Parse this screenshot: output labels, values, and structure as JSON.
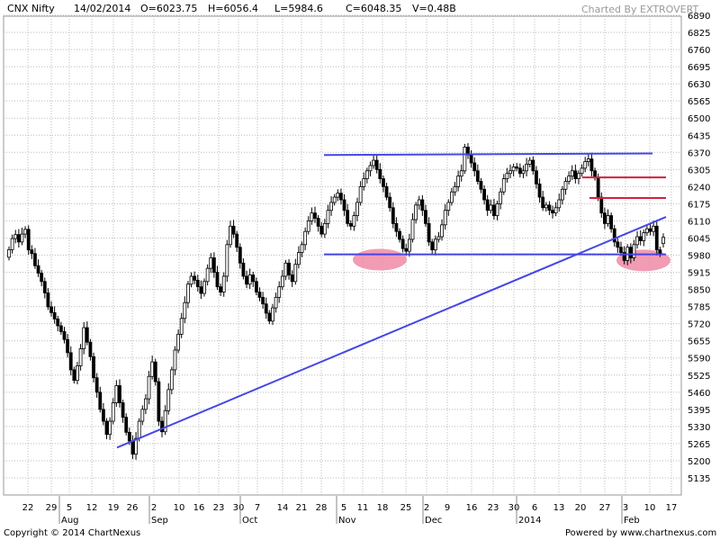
{
  "header": {
    "symbol": "CNX Nifty",
    "date": "14/02/2014",
    "open": "O=6023.75",
    "high": "H=6056.4",
    "low": "L=5984.6",
    "close": "C=6048.35",
    "volume": "V=0.48B",
    "watermark": "Charted By EXTROVERT"
  },
  "footer": {
    "copyright": "Copyright © 2014 ChartNexus",
    "powered": "Powered by www.chartnexus.com"
  },
  "colors": {
    "candle": "#000000",
    "trendline": "#4646e6",
    "resistance": "#d42040",
    "zone": "#f08aa8",
    "grid": "#bbbbbb"
  },
  "chart_data": {
    "type": "candlestick",
    "ylim": [
      5070,
      6890
    ],
    "y_ticks": [
      5135,
      5200,
      5265,
      5330,
      5395,
      5460,
      5525,
      5590,
      5655,
      5720,
      5785,
      5850,
      5915,
      5980,
      6045,
      6110,
      6175,
      6240,
      6305,
      6370,
      6435,
      6500,
      6565,
      6630,
      6695,
      6760,
      6825,
      6890
    ],
    "x_ticks": [
      "22",
      "29",
      "5",
      "12",
      "19",
      "26",
      "2",
      "10",
      "16",
      "23",
      "30",
      "7",
      "14",
      "21",
      "28",
      "5",
      "11",
      "18",
      "25",
      "2",
      "9",
      "16",
      "23",
      "30",
      "6",
      "13",
      "20",
      "27",
      "3",
      "10",
      "17"
    ],
    "month_labels": [
      "Aug",
      "Sep",
      "Oct",
      "Nov",
      "Dec",
      "2014",
      "Feb"
    ],
    "candles": [
      [
        5972,
        6001
      ],
      [
        6001,
        6043
      ],
      [
        6043,
        6058
      ],
      [
        6058,
        6030
      ],
      [
        6030,
        6060
      ],
      [
        6060,
        6078
      ],
      [
        6078,
        6000
      ],
      [
        6000,
        5986
      ],
      [
        5986,
        5940
      ],
      [
        5940,
        5912
      ],
      [
        5912,
        5880
      ],
      [
        5880,
        5837
      ],
      [
        5837,
        5784
      ],
      [
        5784,
        5762
      ],
      [
        5762,
        5738
      ],
      [
        5738,
        5712
      ],
      [
        5712,
        5690
      ],
      [
        5690,
        5660
      ],
      [
        5660,
        5610
      ],
      [
        5610,
        5545
      ],
      [
        5545,
        5505
      ],
      [
        5505,
        5560
      ],
      [
        5560,
        5625
      ],
      [
        5625,
        5705
      ],
      [
        5705,
        5650
      ],
      [
        5650,
        5595
      ],
      [
        5595,
        5515
      ],
      [
        5515,
        5460
      ],
      [
        5460,
        5395
      ],
      [
        5395,
        5350
      ],
      [
        5350,
        5300
      ],
      [
        5300,
        5350
      ],
      [
        5350,
        5420
      ],
      [
        5420,
        5485
      ],
      [
        5485,
        5420
      ],
      [
        5420,
        5365
      ],
      [
        5365,
        5308
      ],
      [
        5308,
        5275
      ],
      [
        5275,
        5225
      ],
      [
        5225,
        5285
      ],
      [
        5285,
        5350
      ],
      [
        5350,
        5395
      ],
      [
        5395,
        5435
      ],
      [
        5435,
        5520
      ],
      [
        5520,
        5575
      ],
      [
        5575,
        5500
      ],
      [
        5500,
        5350
      ],
      [
        5350,
        5310
      ],
      [
        5310,
        5390
      ],
      [
        5390,
        5470
      ],
      [
        5470,
        5545
      ],
      [
        5545,
        5620
      ],
      [
        5620,
        5680
      ],
      [
        5680,
        5740
      ],
      [
        5740,
        5800
      ],
      [
        5800,
        5870
      ],
      [
        5870,
        5900
      ],
      [
        5900,
        5885
      ],
      [
        5885,
        5860
      ],
      [
        5860,
        5835
      ],
      [
        5835,
        5880
      ],
      [
        5880,
        5930
      ],
      [
        5930,
        5970
      ],
      [
        5970,
        5915
      ],
      [
        5915,
        5860
      ],
      [
        5860,
        5840
      ],
      [
        5840,
        5900
      ],
      [
        5900,
        6020
      ],
      [
        6020,
        6090
      ],
      [
        6090,
        6060
      ],
      [
        6060,
        6010
      ],
      [
        6010,
        5950
      ],
      [
        5950,
        5900
      ],
      [
        5900,
        5870
      ],
      [
        5870,
        5905
      ],
      [
        5905,
        5880
      ],
      [
        5880,
        5840
      ],
      [
        5840,
        5820
      ],
      [
        5820,
        5795
      ],
      [
        5795,
        5760
      ],
      [
        5760,
        5730
      ],
      [
        5730,
        5780
      ],
      [
        5780,
        5820
      ],
      [
        5820,
        5860
      ],
      [
        5860,
        5900
      ],
      [
        5900,
        5950
      ],
      [
        5950,
        5905
      ],
      [
        5905,
        5880
      ],
      [
        5880,
        5945
      ],
      [
        5945,
        5990
      ],
      [
        5990,
        6020
      ],
      [
        6020,
        6070
      ],
      [
        6070,
        6110
      ],
      [
        6110,
        6140
      ],
      [
        6140,
        6120
      ],
      [
        6120,
        6090
      ],
      [
        6090,
        6060
      ],
      [
        6060,
        6100
      ],
      [
        6100,
        6150
      ],
      [
        6150,
        6180
      ],
      [
        6180,
        6200
      ],
      [
        6200,
        6215
      ],
      [
        6215,
        6190
      ],
      [
        6190,
        6150
      ],
      [
        6150,
        6100
      ],
      [
        6100,
        6090
      ],
      [
        6090,
        6130
      ],
      [
        6130,
        6180
      ],
      [
        6180,
        6240
      ],
      [
        6240,
        6270
      ],
      [
        6270,
        6300
      ],
      [
        6300,
        6320
      ],
      [
        6320,
        6340
      ],
      [
        6340,
        6305
      ],
      [
        6305,
        6270
      ],
      [
        6270,
        6240
      ],
      [
        6240,
        6200
      ],
      [
        6200,
        6160
      ],
      [
        6160,
        6100
      ],
      [
        6100,
        6070
      ],
      [
        6070,
        6040
      ],
      [
        6040,
        6005
      ],
      [
        6005,
        5995
      ],
      [
        5995,
        6040
      ],
      [
        6040,
        6115
      ],
      [
        6115,
        6170
      ],
      [
        6170,
        6190
      ],
      [
        6190,
        6150
      ],
      [
        6150,
        6100
      ],
      [
        6100,
        6030
      ],
      [
        6030,
        6000
      ],
      [
        6000,
        6040
      ],
      [
        6040,
        6050
      ],
      [
        6050,
        6095
      ],
      [
        6095,
        6150
      ],
      [
        6150,
        6180
      ],
      [
        6180,
        6220
      ],
      [
        6220,
        6240
      ],
      [
        6240,
        6280
      ],
      [
        6280,
        6300
      ],
      [
        6300,
        6390
      ],
      [
        6390,
        6360
      ],
      [
        6360,
        6330
      ],
      [
        6330,
        6300
      ],
      [
        6300,
        6260
      ],
      [
        6260,
        6230
      ],
      [
        6230,
        6190
      ],
      [
        6190,
        6150
      ],
      [
        6150,
        6170
      ],
      [
        6170,
        6130
      ],
      [
        6130,
        6175
      ],
      [
        6175,
        6220
      ],
      [
        6220,
        6270
      ],
      [
        6270,
        6290
      ],
      [
        6290,
        6300
      ],
      [
        6300,
        6315
      ],
      [
        6315,
        6310
      ],
      [
        6310,
        6290
      ],
      [
        6290,
        6300
      ],
      [
        6300,
        6325
      ],
      [
        6325,
        6340
      ],
      [
        6340,
        6300
      ],
      [
        6300,
        6250
      ],
      [
        6250,
        6200
      ],
      [
        6200,
        6160
      ],
      [
        6160,
        6170
      ],
      [
        6170,
        6150
      ],
      [
        6150,
        6140
      ],
      [
        6140,
        6160
      ],
      [
        6160,
        6190
      ],
      [
        6190,
        6230
      ],
      [
        6230,
        6260
      ],
      [
        6260,
        6280
      ],
      [
        6280,
        6300
      ],
      [
        6300,
        6270
      ],
      [
        6270,
        6290
      ],
      [
        6290,
        6310
      ],
      [
        6310,
        6335
      ],
      [
        6335,
        6345
      ],
      [
        6345,
        6300
      ],
      [
        6300,
        6275
      ],
      [
        6275,
        6200
      ],
      [
        6200,
        6140
      ],
      [
        6140,
        6100
      ],
      [
        6100,
        6130
      ],
      [
        6130,
        6080
      ],
      [
        6080,
        6030
      ],
      [
        6030,
        6010
      ],
      [
        6010,
        5990
      ],
      [
        5990,
        5960
      ],
      [
        5960,
        6010
      ],
      [
        6010,
        5970
      ],
      [
        5970,
        6020
      ],
      [
        6020,
        6050
      ],
      [
        6050,
        6035
      ],
      [
        6035,
        6065
      ],
      [
        6065,
        6080
      ],
      [
        6080,
        6070
      ],
      [
        6070,
        6090
      ],
      [
        6090,
        6000
      ],
      [
        6000,
        5985
      ],
      [
        6024,
        6048
      ]
    ],
    "annotations": {
      "support_line": {
        "from": [
          360,
          5983
        ],
        "to": [
          740,
          5983
        ]
      },
      "top_line": {
        "from": [
          360,
          6360
        ],
        "to": [
          725,
          6366
        ]
      },
      "trend_line": {
        "from": [
          130,
          5250
        ],
        "to": [
          740,
          6125
        ]
      },
      "resistance_lines": [
        {
          "from": [
            647,
            6275
          ],
          "to": [
            740,
            6275
          ]
        },
        {
          "from": [
            655,
            6197
          ],
          "to": [
            740,
            6197
          ]
        }
      ],
      "zones": [
        {
          "cx": 422,
          "cy": 5963,
          "rx": 30,
          "ry": 30
        },
        {
          "cx": 715,
          "cy": 5960,
          "rx": 30,
          "ry": 30
        }
      ]
    }
  }
}
